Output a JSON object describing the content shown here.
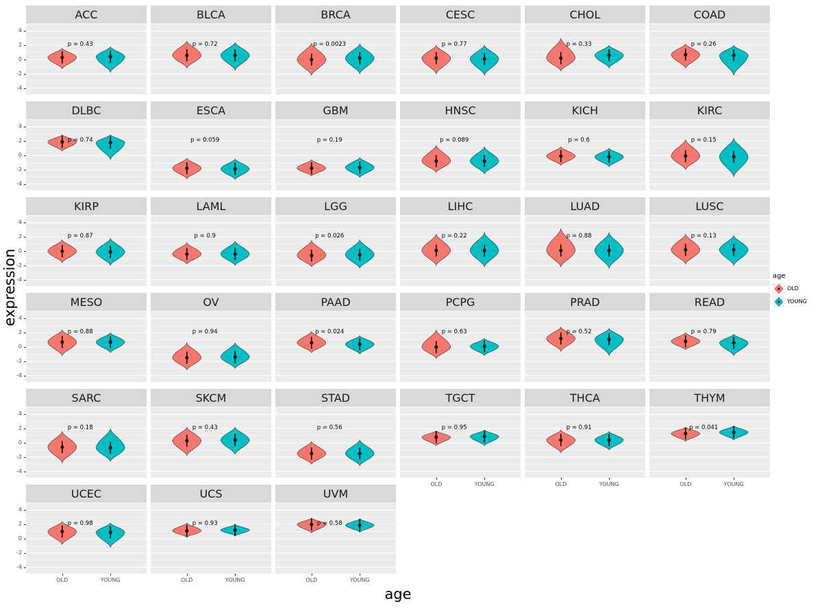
{
  "figure": {
    "y_axis_title": "expression",
    "x_axis_title": "age",
    "legend": {
      "title": "age",
      "items": [
        {
          "label": "OLD",
          "color": "#F8766D"
        },
        {
          "label": "YOUNG",
          "color": "#00BFC4"
        }
      ]
    }
  },
  "chart_data": {
    "type": "violin",
    "title": "",
    "xlabel": "age",
    "ylabel": "expression",
    "groups": [
      "OLD",
      "YOUNG"
    ],
    "group_colors": {
      "OLD": "#F8766D",
      "YOUNG": "#00BFC4"
    },
    "y_ticks": [
      4,
      2,
      0,
      -2,
      -4
    ],
    "ylim": [
      -4.9,
      5.1
    ],
    "panel_bg": "#EBEBEB",
    "strip_bg": "#D9D9D9",
    "gridline_color": "#FFFFFF",
    "p_label_y": 2.2,
    "pointrange_halfspan": 0.85,
    "facets": [
      {
        "name": "ACC",
        "p_label": "p = 0.43",
        "old": {
          "median": 0.3,
          "min": -1.3,
          "max": 1.6
        },
        "young": {
          "median": 0.4,
          "min": -1.8,
          "max": 1.8
        }
      },
      {
        "name": "BLCA",
        "p_label": "p = 0.72",
        "old": {
          "median": 0.6,
          "min": -1.2,
          "max": 2.6
        },
        "young": {
          "median": 0.6,
          "min": -1.5,
          "max": 2.4
        }
      },
      {
        "name": "BRCA",
        "p_label": "p = 0.0023",
        "old": {
          "median": 0.0,
          "min": -2.2,
          "max": 2.3
        },
        "young": {
          "median": 0.2,
          "min": -2.0,
          "max": 2.2
        }
      },
      {
        "name": "CESC",
        "p_label": "p = 0.77",
        "old": {
          "median": 0.2,
          "min": -2.0,
          "max": 2.0
        },
        "young": {
          "median": 0.1,
          "min": -2.2,
          "max": 2.0
        }
      },
      {
        "name": "CHOL",
        "p_label": "p = 0.33",
        "old": {
          "median": 0.2,
          "min": -1.6,
          "max": 3.0
        },
        "young": {
          "median": 0.6,
          "min": -1.2,
          "max": 2.0
        }
      },
      {
        "name": "COAD",
        "p_label": "p = 0.26",
        "old": {
          "median": 0.7,
          "min": -1.2,
          "max": 2.2
        },
        "young": {
          "median": 0.6,
          "min": -2.2,
          "max": 2.0
        }
      },
      {
        "name": "DLBC",
        "p_label": "p = 0.74",
        "old": {
          "median": 1.9,
          "min": 0.6,
          "max": 2.9
        },
        "young": {
          "median": 1.8,
          "min": -0.6,
          "max": 2.9
        }
      },
      {
        "name": "ESCA",
        "p_label": "p = 0.059",
        "old": {
          "median": -1.8,
          "min": -3.3,
          "max": -0.4
        },
        "young": {
          "median": -1.9,
          "min": -3.4,
          "max": -0.5
        }
      },
      {
        "name": "GBM",
        "p_label": "p = 0.19",
        "old": {
          "median": -1.8,
          "min": -2.9,
          "max": -0.6
        },
        "young": {
          "median": -1.7,
          "min": -3.1,
          "max": -0.3
        }
      },
      {
        "name": "HNSC",
        "p_label": "p = 0.089",
        "old": {
          "median": -0.8,
          "min": -2.4,
          "max": 1.4
        },
        "young": {
          "median": -0.8,
          "min": -2.6,
          "max": 1.2
        }
      },
      {
        "name": "KICH",
        "p_label": "p = 0.6",
        "old": {
          "median": -0.1,
          "min": -1.4,
          "max": 1.2
        },
        "young": {
          "median": -0.2,
          "min": -1.6,
          "max": 1.0
        }
      },
      {
        "name": "KIRC",
        "p_label": "p = 0.15",
        "old": {
          "median": -0.1,
          "min": -2.0,
          "max": 2.2
        },
        "young": {
          "median": -0.2,
          "min": -3.0,
          "max": 2.4
        }
      },
      {
        "name": "KIRP",
        "p_label": "p = 0.87",
        "old": {
          "median": 0.0,
          "min": -1.6,
          "max": 1.6
        },
        "young": {
          "median": -0.1,
          "min": -2.0,
          "max": 1.8
        }
      },
      {
        "name": "LAML",
        "p_label": "p = 0.9",
        "old": {
          "median": -0.4,
          "min": -1.8,
          "max": 1.2
        },
        "young": {
          "median": -0.4,
          "min": -2.0,
          "max": 1.4
        }
      },
      {
        "name": "LGG",
        "p_label": "p = 0.026",
        "old": {
          "median": -0.6,
          "min": -2.2,
          "max": 1.5
        },
        "young": {
          "median": -0.5,
          "min": -2.4,
          "max": 1.6
        }
      },
      {
        "name": "LIHC",
        "p_label": "p = 0.22",
        "old": {
          "median": 0.1,
          "min": -2.0,
          "max": 2.4
        },
        "young": {
          "median": 0.1,
          "min": -2.2,
          "max": 2.6
        }
      },
      {
        "name": "LUAD",
        "p_label": "p = 0.88",
        "old": {
          "median": 0.1,
          "min": -2.2,
          "max": 3.2
        },
        "young": {
          "median": 0.1,
          "min": -2.4,
          "max": 2.6
        }
      },
      {
        "name": "LUSC",
        "p_label": "p = 0.13",
        "old": {
          "median": 0.2,
          "min": -1.8,
          "max": 2.4
        },
        "young": {
          "median": 0.2,
          "min": -2.0,
          "max": 2.2
        }
      },
      {
        "name": "MESO",
        "p_label": "p = 0.88",
        "old": {
          "median": 0.7,
          "min": -1.2,
          "max": 2.4
        },
        "young": {
          "median": 0.7,
          "min": -0.8,
          "max": 2.0
        }
      },
      {
        "name": "OV",
        "p_label": "p = 0.94",
        "old": {
          "median": -1.5,
          "min": -3.2,
          "max": 0.6
        },
        "young": {
          "median": -1.4,
          "min": -3.0,
          "max": 0.6
        }
      },
      {
        "name": "PAAD",
        "p_label": "p = 0.024",
        "old": {
          "median": 0.6,
          "min": -0.8,
          "max": 2.2
        },
        "young": {
          "median": 0.4,
          "min": -1.0,
          "max": 1.6
        }
      },
      {
        "name": "PCPG",
        "p_label": "p = 0.63",
        "old": {
          "median": 0.0,
          "min": -1.6,
          "max": 2.4
        },
        "young": {
          "median": 0.1,
          "min": -1.2,
          "max": 1.2
        }
      },
      {
        "name": "PRAD",
        "p_label": "p = 0.52",
        "old": {
          "median": 1.2,
          "min": -0.6,
          "max": 2.8
        },
        "young": {
          "median": 1.1,
          "min": -1.2,
          "max": 2.6
        }
      },
      {
        "name": "READ",
        "p_label": "p = 0.79",
        "old": {
          "median": 0.8,
          "min": -0.4,
          "max": 2.0
        },
        "young": {
          "median": 0.6,
          "min": -1.2,
          "max": 1.8
        }
      },
      {
        "name": "SARC",
        "p_label": "p = 0.18",
        "old": {
          "median": -0.6,
          "min": -2.8,
          "max": 1.6
        },
        "young": {
          "median": -0.7,
          "min": -2.6,
          "max": 2.0
        }
      },
      {
        "name": "SKCM",
        "p_label": "p = 0.43",
        "old": {
          "median": 0.3,
          "min": -1.8,
          "max": 2.2
        },
        "young": {
          "median": 0.4,
          "min": -1.6,
          "max": 2.2
        }
      },
      {
        "name": "STAD",
        "p_label": "p = 0.56",
        "old": {
          "median": -1.5,
          "min": -3.0,
          "max": 0.2
        },
        "young": {
          "median": -1.5,
          "min": -3.2,
          "max": 0.4
        }
      },
      {
        "name": "TGCT",
        "p_label": "p = 0.95",
        "old": {
          "median": 0.8,
          "min": -0.4,
          "max": 1.7
        },
        "young": {
          "median": 0.9,
          "min": -0.4,
          "max": 1.8
        }
      },
      {
        "name": "THCA",
        "p_label": "p = 0.91",
        "old": {
          "median": 0.4,
          "min": -1.4,
          "max": 1.8
        },
        "young": {
          "median": 0.4,
          "min": -1.0,
          "max": 1.6
        }
      },
      {
        "name": "THYM",
        "p_label": "p = 0.041",
        "old": {
          "median": 1.3,
          "min": 0.2,
          "max": 2.2
        },
        "young": {
          "median": 1.5,
          "min": 0.4,
          "max": 2.4
        }
      },
      {
        "name": "UCEC",
        "p_label": "p = 0.98",
        "old": {
          "median": 1.0,
          "min": -0.8,
          "max": 2.4
        },
        "young": {
          "median": 0.9,
          "min": -1.2,
          "max": 2.2
        }
      },
      {
        "name": "UCS",
        "p_label": "p = 0.93",
        "old": {
          "median": 1.1,
          "min": 0.2,
          "max": 2.2
        },
        "young": {
          "median": 1.2,
          "min": 0.4,
          "max": 2.0
        }
      },
      {
        "name": "UVM",
        "p_label": "p = 0.58",
        "old": {
          "median": 2.0,
          "min": 0.8,
          "max": 2.9
        },
        "young": {
          "median": 1.9,
          "min": 0.9,
          "max": 2.8
        }
      }
    ]
  }
}
